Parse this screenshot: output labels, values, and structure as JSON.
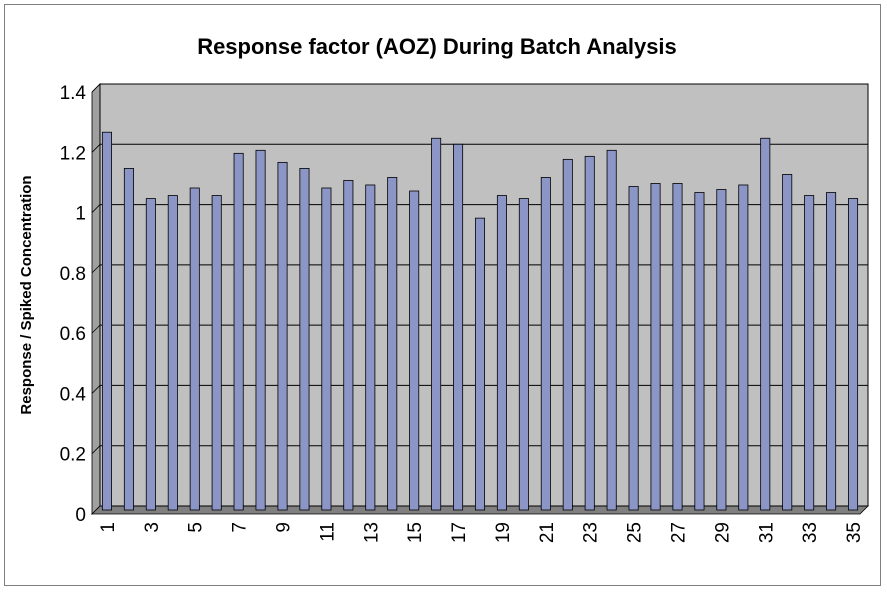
{
  "chart_data": {
    "type": "bar",
    "title": "Response factor (AOZ) During Batch Analysis",
    "xlabel": "",
    "ylabel": "Response / Spiked Concentration",
    "ylim": [
      0,
      1.4
    ],
    "yticks": [
      "0",
      "0.2",
      "0.4",
      "0.6",
      "0.8",
      "1",
      "1.2",
      "1.4"
    ],
    "ytick_values": [
      0,
      0.2,
      0.4,
      0.6,
      0.8,
      1,
      1.2,
      1.4
    ],
    "categories": [
      "1",
      "2",
      "3",
      "4",
      "5",
      "6",
      "7",
      "8",
      "9",
      "10",
      "11",
      "12",
      "13",
      "14",
      "15",
      "16",
      "17",
      "18",
      "19",
      "20",
      "21",
      "22",
      "23",
      "24",
      "25",
      "26",
      "27",
      "28",
      "29",
      "30",
      "31",
      "32",
      "33",
      "34",
      "35"
    ],
    "x_tick_labels_shown": [
      "1",
      "3",
      "5",
      "7",
      "9",
      "11",
      "13",
      "15",
      "17",
      "19",
      "21",
      "23",
      "25",
      "27",
      "29",
      "31",
      "33",
      "35"
    ],
    "values": [
      1.24,
      1.12,
      1.02,
      1.03,
      1.055,
      1.03,
      1.17,
      1.18,
      1.14,
      1.12,
      1.055,
      1.08,
      1.065,
      1.09,
      1.045,
      1.22,
      1.2,
      0.955,
      1.03,
      1.02,
      1.09,
      1.15,
      1.16,
      1.18,
      1.06,
      1.07,
      1.07,
      1.04,
      1.05,
      1.065,
      1.22,
      1.1,
      1.03,
      1.04,
      1.02
    ],
    "grid": true,
    "legend": "none",
    "colors": {
      "bar_fill": "#8c96c6",
      "bar_stroke": "#000000",
      "plot_background": "#c0c0c0",
      "gridline": "#000000"
    }
  }
}
